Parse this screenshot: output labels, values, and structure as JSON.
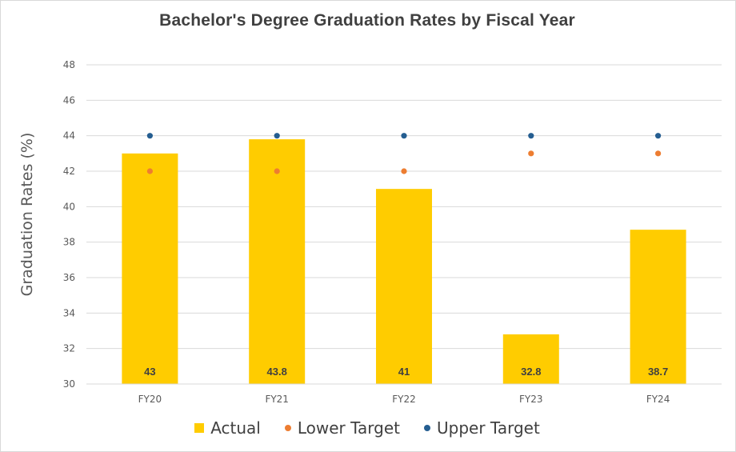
{
  "chart_data": {
    "type": "bar",
    "title": "Bachelor's Degree Graduation Rates by Fiscal Year",
    "xlabel": "",
    "ylabel": "Graduation Rates (%)",
    "ylim": [
      30,
      48
    ],
    "yticks": [
      30,
      32,
      34,
      36,
      38,
      40,
      42,
      44,
      46,
      48
    ],
    "grid": true,
    "legend_position": "bottom",
    "categories": [
      "FY20",
      "FY21",
      "FY22",
      "FY23",
      "FY24"
    ],
    "series": [
      {
        "name": "Actual",
        "kind": "bar",
        "color": "#FFCC00",
        "values": [
          43,
          43.8,
          41,
          32.8,
          38.7
        ],
        "data_labels": [
          "43",
          "43.8",
          "41",
          "32.8",
          "38.7"
        ]
      },
      {
        "name": "Lower Target",
        "kind": "point",
        "color": "#ED7D31",
        "values": [
          42,
          42,
          42,
          43,
          43
        ]
      },
      {
        "name": "Upper Target",
        "kind": "point",
        "color": "#255E91",
        "values": [
          44,
          44,
          44,
          44,
          44
        ]
      }
    ]
  }
}
